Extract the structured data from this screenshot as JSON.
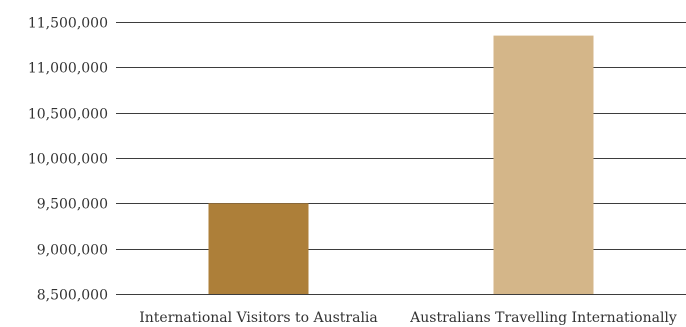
{
  "chart_data": {
    "type": "bar",
    "title": "",
    "xlabel": "",
    "ylabel": "",
    "ylim": [
      8500000,
      11500000
    ],
    "yticks": [
      8500000,
      9000000,
      9500000,
      10000000,
      10500000,
      11000000,
      11500000
    ],
    "ytick_labels": [
      "8,500,000",
      "9,000,000",
      "9,500,000",
      "10,000,000",
      "10,500,000",
      "11,000,000",
      "11,500,000"
    ],
    "grid": true,
    "categories": [
      "International Visitors to Australia",
      "Australians Travelling Internationally"
    ],
    "values": [
      9500000,
      11350000
    ],
    "colors": [
      "#ad7f39",
      "#d4b689"
    ]
  }
}
